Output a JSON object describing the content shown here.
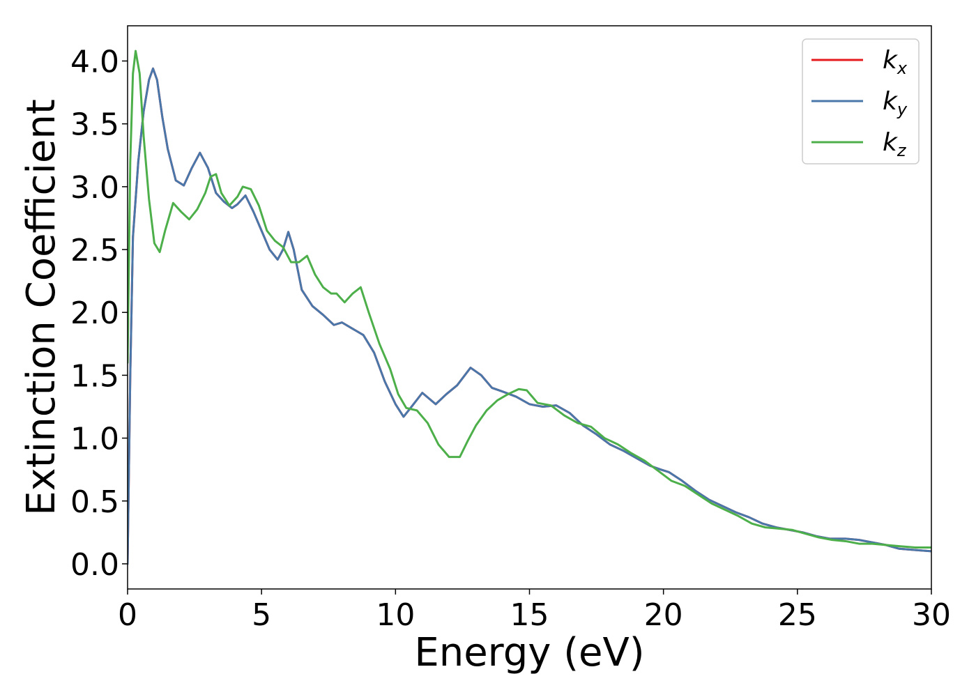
{
  "chart_data": {
    "type": "line",
    "title": "",
    "xlabel": "Energy (eV)",
    "ylabel": "Extinction Coefficient",
    "xlim": [
      0,
      30
    ],
    "ylim": [
      -0.2,
      4.28
    ],
    "xticks": [
      0,
      5,
      10,
      15,
      20,
      25,
      30
    ],
    "xtick_labels": [
      "0",
      "5",
      "10",
      "15",
      "20",
      "25",
      "30"
    ],
    "yticks": [
      0.0,
      0.5,
      1.0,
      1.5,
      2.0,
      2.5,
      3.0,
      3.5,
      4.0
    ],
    "ytick_labels": [
      "0.0",
      "0.5",
      "1.0",
      "1.5",
      "2.0",
      "2.5",
      "3.0",
      "3.5",
      "4.0"
    ],
    "grid": false,
    "legend_position": "top-right",
    "series": [
      {
        "name": "k_x",
        "legend_base": "k",
        "legend_sub": "x",
        "color": "#e41a1c",
        "x": [
          0,
          0.1,
          0.2,
          0.4,
          0.6,
          0.8,
          0.95,
          1.1,
          1.3,
          1.5,
          1.8,
          2.1,
          2.4,
          2.7,
          3.0,
          3.3,
          3.6,
          3.9,
          4.1,
          4.4,
          4.7,
          5.0,
          5.3,
          5.6,
          5.8,
          6.0,
          6.2,
          6.5,
          6.9,
          7.3,
          7.7,
          8.0,
          8.4,
          8.8,
          9.2,
          9.6,
          10.0,
          10.3,
          10.6,
          11.0,
          11.5,
          11.9,
          12.3,
          12.8,
          13.2,
          13.6,
          14.0,
          14.5,
          15.0,
          15.5,
          16.0,
          16.5,
          17.0,
          17.5,
          18.0,
          18.5,
          19.0,
          19.5,
          19.9,
          20.2,
          20.7,
          21.2,
          21.7,
          22.2,
          22.7,
          23.2,
          23.7,
          24.2,
          24.7,
          25.2,
          25.7,
          26.2,
          26.8,
          27.3,
          27.8,
          28.3,
          28.8,
          29.4,
          30.0
        ],
        "y": [
          0.0,
          1.5,
          2.6,
          3.2,
          3.6,
          3.85,
          3.94,
          3.85,
          3.55,
          3.3,
          3.05,
          3.01,
          3.15,
          3.27,
          3.15,
          2.95,
          2.88,
          2.83,
          2.86,
          2.93,
          2.8,
          2.65,
          2.5,
          2.42,
          2.5,
          2.64,
          2.5,
          2.18,
          2.05,
          1.98,
          1.9,
          1.92,
          1.87,
          1.82,
          1.68,
          1.45,
          1.27,
          1.17,
          1.25,
          1.36,
          1.27,
          1.35,
          1.42,
          1.56,
          1.5,
          1.4,
          1.37,
          1.33,
          1.27,
          1.25,
          1.26,
          1.2,
          1.1,
          1.03,
          0.95,
          0.9,
          0.84,
          0.78,
          0.75,
          0.73,
          0.66,
          0.58,
          0.51,
          0.46,
          0.41,
          0.37,
          0.32,
          0.29,
          0.27,
          0.25,
          0.22,
          0.2,
          0.2,
          0.19,
          0.17,
          0.15,
          0.12,
          0.11,
          0.1
        ]
      },
      {
        "name": "k_y",
        "legend_base": "k",
        "legend_sub": "y",
        "color": "#4a77aa",
        "x": [
          0,
          0.1,
          0.2,
          0.4,
          0.6,
          0.8,
          0.95,
          1.1,
          1.3,
          1.5,
          1.8,
          2.1,
          2.4,
          2.7,
          3.0,
          3.3,
          3.6,
          3.9,
          4.1,
          4.4,
          4.7,
          5.0,
          5.3,
          5.6,
          5.8,
          6.0,
          6.2,
          6.5,
          6.9,
          7.3,
          7.7,
          8.0,
          8.4,
          8.8,
          9.2,
          9.6,
          10.0,
          10.3,
          10.6,
          11.0,
          11.5,
          11.9,
          12.3,
          12.8,
          13.2,
          13.6,
          14.0,
          14.5,
          15.0,
          15.5,
          16.0,
          16.5,
          17.0,
          17.5,
          18.0,
          18.5,
          19.0,
          19.5,
          19.9,
          20.2,
          20.7,
          21.2,
          21.7,
          22.2,
          22.7,
          23.2,
          23.7,
          24.2,
          24.7,
          25.2,
          25.7,
          26.2,
          26.8,
          27.3,
          27.8,
          28.3,
          28.8,
          29.4,
          30.0
        ],
        "y": [
          0.0,
          1.5,
          2.6,
          3.2,
          3.6,
          3.85,
          3.94,
          3.85,
          3.55,
          3.3,
          3.05,
          3.01,
          3.15,
          3.27,
          3.15,
          2.95,
          2.88,
          2.83,
          2.86,
          2.93,
          2.8,
          2.65,
          2.5,
          2.42,
          2.5,
          2.64,
          2.5,
          2.18,
          2.05,
          1.98,
          1.9,
          1.92,
          1.87,
          1.82,
          1.68,
          1.45,
          1.27,
          1.17,
          1.25,
          1.36,
          1.27,
          1.35,
          1.42,
          1.56,
          1.5,
          1.4,
          1.37,
          1.33,
          1.27,
          1.25,
          1.26,
          1.2,
          1.1,
          1.03,
          0.95,
          0.9,
          0.84,
          0.78,
          0.75,
          0.73,
          0.66,
          0.58,
          0.51,
          0.46,
          0.41,
          0.37,
          0.32,
          0.29,
          0.27,
          0.25,
          0.22,
          0.2,
          0.2,
          0.19,
          0.17,
          0.15,
          0.12,
          0.11,
          0.1
        ]
      },
      {
        "name": "k_z",
        "legend_base": "k",
        "legend_sub": "z",
        "color": "#4daf4a",
        "x": [
          0,
          0.1,
          0.2,
          0.3,
          0.45,
          0.6,
          0.8,
          1.0,
          1.2,
          1.4,
          1.7,
          2.0,
          2.3,
          2.6,
          2.9,
          3.1,
          3.3,
          3.5,
          3.8,
          4.1,
          4.3,
          4.6,
          4.9,
          5.2,
          5.5,
          5.8,
          6.1,
          6.4,
          6.7,
          7.0,
          7.3,
          7.6,
          7.8,
          8.1,
          8.4,
          8.7,
          9.0,
          9.4,
          9.8,
          10.1,
          10.4,
          10.8,
          11.2,
          11.6,
          12.0,
          12.4,
          12.7,
          13.0,
          13.4,
          13.8,
          14.2,
          14.6,
          14.9,
          15.3,
          15.8,
          16.3,
          16.8,
          17.3,
          17.8,
          18.3,
          18.8,
          19.3,
          19.8,
          20.3,
          20.8,
          21.3,
          21.8,
          22.3,
          22.8,
          23.3,
          23.8,
          24.3,
          24.8,
          25.3,
          25.8,
          26.3,
          26.8,
          27.3,
          27.8,
          28.3,
          28.8,
          29.4,
          30.0
        ],
        "y": [
          1.6,
          3.2,
          3.9,
          4.08,
          3.9,
          3.4,
          2.9,
          2.55,
          2.48,
          2.65,
          2.87,
          2.8,
          2.74,
          2.82,
          2.95,
          3.08,
          3.1,
          2.95,
          2.85,
          2.92,
          3.0,
          2.98,
          2.85,
          2.65,
          2.57,
          2.52,
          2.4,
          2.4,
          2.45,
          2.3,
          2.2,
          2.15,
          2.15,
          2.08,
          2.15,
          2.2,
          2.0,
          1.75,
          1.55,
          1.35,
          1.24,
          1.22,
          1.12,
          0.95,
          0.85,
          0.85,
          0.98,
          1.1,
          1.22,
          1.3,
          1.35,
          1.39,
          1.38,
          1.28,
          1.26,
          1.18,
          1.12,
          1.09,
          1.0,
          0.95,
          0.88,
          0.82,
          0.74,
          0.66,
          0.62,
          0.55,
          0.48,
          0.43,
          0.38,
          0.32,
          0.29,
          0.28,
          0.27,
          0.24,
          0.21,
          0.19,
          0.18,
          0.16,
          0.16,
          0.15,
          0.14,
          0.13,
          0.13
        ]
      }
    ]
  }
}
